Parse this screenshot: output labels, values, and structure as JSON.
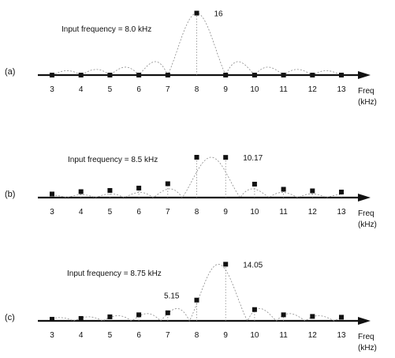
{
  "colors": {
    "ink": "#111111",
    "curve": "#8a8a8a"
  },
  "chart_data": [
    {
      "type": "scatter",
      "panel_label": "(a)",
      "annotation": "Input frequency  = 8.0 kHz",
      "input_frequency_khz": 8.0,
      "xlabel": "Freq",
      "xunit": "(kHz)",
      "x": [
        3,
        4,
        5,
        6,
        7,
        8,
        9,
        10,
        11,
        12,
        13
      ],
      "values": [
        0,
        0,
        0,
        0,
        0,
        16,
        0,
        0,
        0,
        0,
        0
      ],
      "value_labels": [
        {
          "x": 8,
          "text": "16"
        }
      ]
    },
    {
      "type": "scatter",
      "panel_label": "(b)",
      "annotation": "Input frequency  = 8.5 kHz",
      "input_frequency_khz": 8.5,
      "xlabel": "Freq",
      "xunit": "(kHz)",
      "x": [
        3,
        4,
        5,
        6,
        7,
        8,
        9,
        10,
        11,
        12,
        13
      ],
      "values": [
        0.9,
        1.5,
        1.8,
        2.4,
        3.5,
        10.2,
        10.17,
        3.4,
        2.1,
        1.7,
        1.4
      ],
      "value_labels": [
        {
          "x": 9,
          "text": "10.17"
        }
      ]
    },
    {
      "type": "scatter",
      "panel_label": "(c)",
      "annotation": "Input frequency  = 8.75 kHz",
      "input_frequency_khz": 8.75,
      "xlabel": "Freq",
      "xunit": "(kHz)",
      "x": [
        3,
        4,
        5,
        6,
        7,
        8,
        9,
        10,
        11,
        12,
        13
      ],
      "values": [
        0.4,
        0.6,
        1.0,
        1.5,
        2.0,
        5.15,
        14.05,
        2.8,
        1.5,
        1.1,
        0.9
      ],
      "value_labels": [
        {
          "x": 8,
          "text": "5.15"
        },
        {
          "x": 9,
          "text": "14.05"
        }
      ]
    }
  ]
}
